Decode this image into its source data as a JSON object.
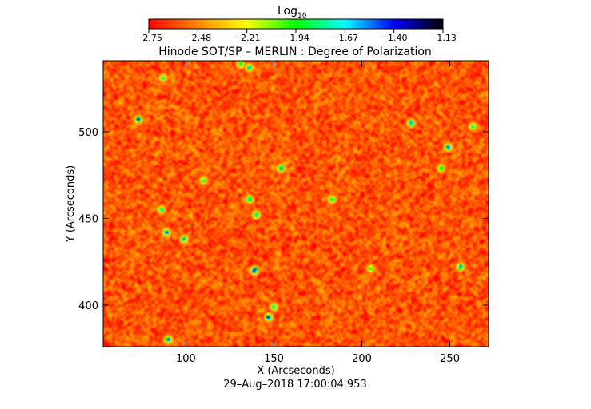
{
  "chart_data": {
    "type": "heatmap",
    "title": "Hinode SOT/SP – MERLIN : Degree of Polarization",
    "xlabel": "X (Arcseconds)",
    "ylabel": "Y (Arcseconds)",
    "timestamp": "29–Aug–2018 17:00:04.953",
    "xlim": [
      53,
      272
    ],
    "ylim": [
      376,
      541
    ],
    "xticks": [
      100,
      150,
      200,
      250
    ],
    "yticks": [
      400,
      450,
      500
    ],
    "colorbar": {
      "label_base": "Log",
      "label_sub": "10",
      "min": -2.75,
      "max": -1.13,
      "ticks": [
        "−2.75",
        "−2.48",
        "−2.21",
        "−1.94",
        "−1.67",
        "−1.40",
        "−1.13"
      ],
      "colormap": [
        "#ff0000",
        "#ff8800",
        "#ffff00",
        "#00ff00",
        "#00ffff",
        "#0000ff",
        "#000000"
      ]
    },
    "background_level": -2.58,
    "strong_polarization_patches": [
      {
        "x": 139,
        "y": 420,
        "level": -1.25
      },
      {
        "x": 147,
        "y": 393,
        "level": -1.35
      },
      {
        "x": 89,
        "y": 442,
        "level": -1.55
      },
      {
        "x": 86,
        "y": 455,
        "level": -1.7
      },
      {
        "x": 73,
        "y": 507,
        "level": -1.45
      },
      {
        "x": 228,
        "y": 505,
        "level": -1.45
      },
      {
        "x": 249,
        "y": 491,
        "level": -1.5
      },
      {
        "x": 256,
        "y": 422,
        "level": -1.5
      },
      {
        "x": 136,
        "y": 461,
        "level": -1.5
      },
      {
        "x": 140,
        "y": 452,
        "level": -1.6
      },
      {
        "x": 154,
        "y": 479,
        "level": -1.55
      },
      {
        "x": 99,
        "y": 438,
        "level": -1.7
      },
      {
        "x": 90,
        "y": 380,
        "level": -1.5
      },
      {
        "x": 136,
        "y": 537,
        "level": -1.6
      },
      {
        "x": 131,
        "y": 539,
        "level": -1.7
      },
      {
        "x": 87,
        "y": 531,
        "level": -1.8
      },
      {
        "x": 183,
        "y": 461,
        "level": -1.7
      },
      {
        "x": 245,
        "y": 479,
        "level": -1.75
      },
      {
        "x": 150,
        "y": 399,
        "level": -1.75
      },
      {
        "x": 263,
        "y": 503,
        "level": -1.8
      },
      {
        "x": 110,
        "y": 472,
        "level": -1.85
      },
      {
        "x": 205,
        "y": 421,
        "level": -1.9
      }
    ]
  }
}
